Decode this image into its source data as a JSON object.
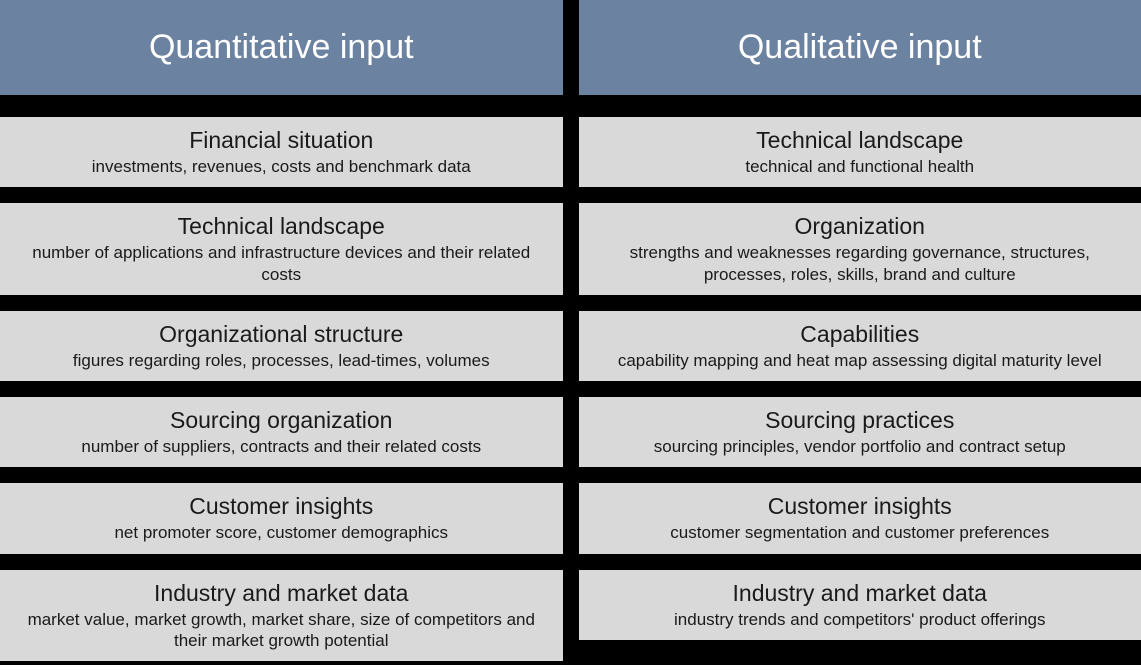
{
  "layout": {
    "background": "#ffffff",
    "divider_color": "#000000",
    "header_bg": "#6b82a0",
    "header_text_color": "#ffffff",
    "item_bg": "#d9d9d9",
    "item_text_color": "#1a1a1a",
    "header_fontsize": 34,
    "title_fontsize": 23,
    "desc_fontsize": 17
  },
  "columns": [
    {
      "header": "Quantitative input",
      "items": [
        {
          "title": "Financial situation",
          "desc": "investments, revenues, costs and benchmark data"
        },
        {
          "title": "Technical landscape",
          "desc": "number of applications and infrastructure devices and their related costs"
        },
        {
          "title": "Organizational structure",
          "desc": "figures regarding roles, processes, lead-times, volumes"
        },
        {
          "title": "Sourcing organization",
          "desc": "number of suppliers, contracts and their related costs"
        },
        {
          "title": "Customer insights",
          "desc": "net promoter score, customer demographics"
        },
        {
          "title": "Industry and market data",
          "desc": "market value, market growth, market share, size of competitors and their market growth potential"
        }
      ]
    },
    {
      "header": "Qualitative input",
      "items": [
        {
          "title": "Technical landscape",
          "desc": "technical and functional health"
        },
        {
          "title": "Organization",
          "desc": "strengths and weaknesses regarding governance, structures, processes, roles, skills, brand and culture"
        },
        {
          "title": "Capabilities",
          "desc": "capability mapping and heat map assessing digital maturity level"
        },
        {
          "title": "Sourcing practices",
          "desc": "sourcing principles, vendor portfolio and contract setup"
        },
        {
          "title": "Customer insights",
          "desc": "customer segmentation and customer preferences"
        },
        {
          "title": "Industry and market data",
          "desc": "industry trends and competitors' product offerings"
        }
      ]
    }
  ]
}
